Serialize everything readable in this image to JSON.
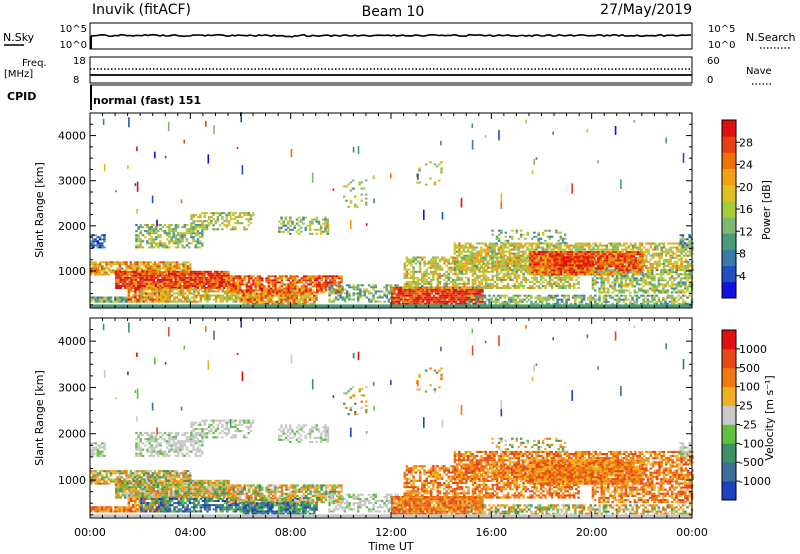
{
  "header": {
    "station": "Inuvik (fitACF)",
    "beam": "Beam 10",
    "date": "27/May/2019"
  },
  "strip_noise": {
    "left_label": "N.Sky",
    "right_label": "N.Search",
    "left_ticks": [
      "10^5",
      "10^0"
    ],
    "right_ticks": [
      "10^5",
      "10^0"
    ]
  },
  "strip_freq": {
    "left_label_1": "Freq.",
    "left_label_2": "[MHz]",
    "right_label": "Nave",
    "left_ticks": [
      "18",
      "8"
    ],
    "right_ticks": [
      "60",
      "0"
    ]
  },
  "strip_cpid": {
    "label": "CPID",
    "value": "normal (fast) 151"
  },
  "chart_data": [
    {
      "type": "heatmap",
      "panel": "power",
      "ylabel": "Slant Range [km]",
      "y_ticks": [
        "4000",
        "3000",
        "2000",
        "1000"
      ],
      "y_tick_values": [
        4000,
        3000,
        2000,
        1000
      ],
      "ylim": [
        180,
        4500
      ],
      "xlim_hours": [
        0,
        24
      ],
      "colorbar": {
        "label": "Power [dB]",
        "ticks": [
          "28",
          "24",
          "20",
          "16",
          "12",
          "8",
          "4"
        ],
        "range": [
          0,
          30
        ],
        "colors": [
          "#1010e0",
          "#2050c0",
          "#3d7aa8",
          "#4b9a78",
          "#7fb870",
          "#a7cc38",
          "#e0c020",
          "#f0a010",
          "#f07000",
          "#e84010",
          "#e01010"
        ]
      }
    },
    {
      "type": "heatmap",
      "panel": "velocity",
      "ylabel": "Slant Range [km]",
      "y_ticks": [
        "4000",
        "3000",
        "2000",
        "1000"
      ],
      "y_tick_values": [
        4000,
        3000,
        2000,
        1000
      ],
      "ylim": [
        180,
        4500
      ],
      "xlim_hours": [
        0,
        24
      ],
      "colorbar": {
        "label": "Velocity [m s⁻¹]",
        "ticks": [
          "1000",
          "500",
          "100",
          "25",
          "-25",
          "-100",
          "-500",
          "-1000"
        ],
        "colors": [
          "#2040c0",
          "#3c6e98",
          "#3e9068",
          "#62c040",
          "#c8c8c8",
          "#f0b020",
          "#f07810",
          "#e84818",
          "#e01010"
        ]
      }
    }
  ],
  "xaxis": {
    "label": "Time UT",
    "ticks": [
      "00:00",
      "04:00",
      "08:00",
      "12:00",
      "16:00",
      "20:00",
      "00:00"
    ],
    "tick_hours": [
      0,
      4,
      8,
      12,
      16,
      20,
      24
    ]
  }
}
